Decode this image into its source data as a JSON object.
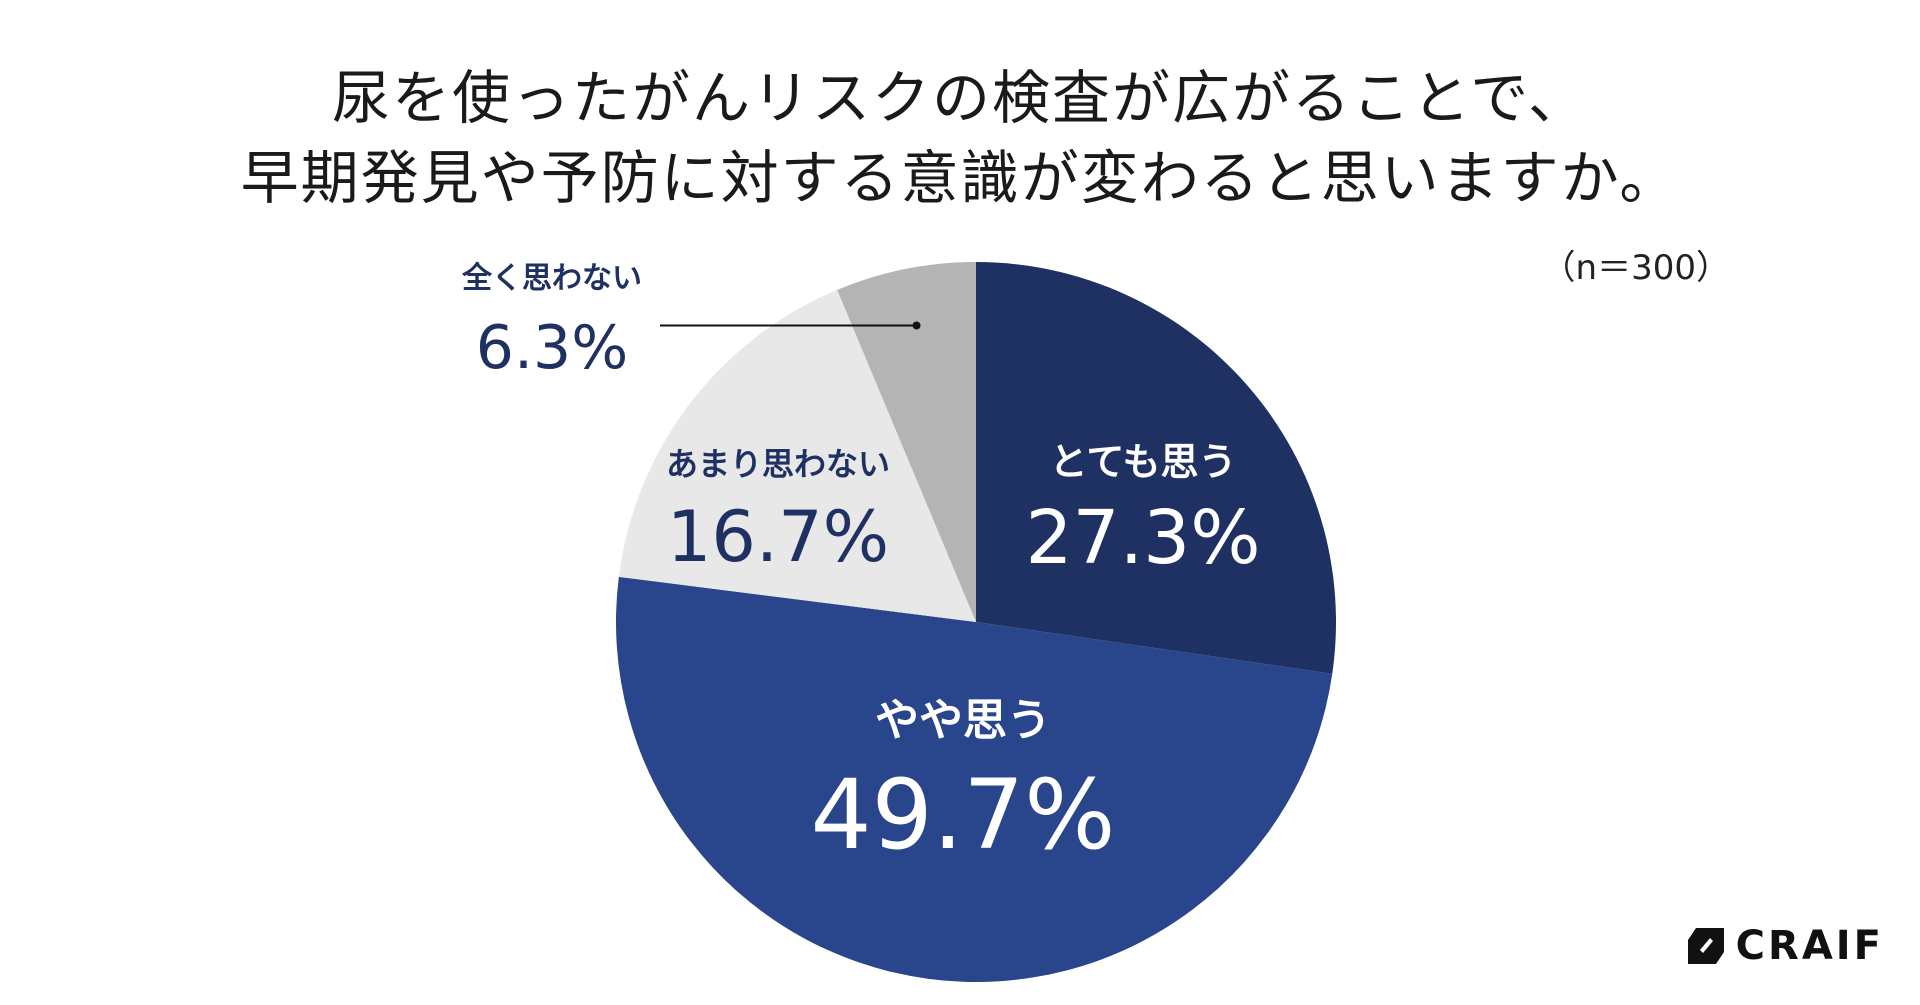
{
  "title": {
    "line1": "尿を使ったがんリスクの検査が広がることで、",
    "line2": "早期発見や予防に対する意識が変わると思いますか。"
  },
  "sample_size": "（n＝300）",
  "logo": {
    "text": "CRAIF",
    "icon": "craif-logo-icon"
  },
  "chart_data": {
    "type": "pie",
    "title": "尿を使ったがんリスクの検査が広がることで、早期発見や予防に対する意識が変わると思いますか。",
    "start": "12 o'clock, clockwise",
    "slices": [
      {
        "label": "とても思う",
        "value": 27.3,
        "value_label": "27.3%",
        "color": "#1f3163",
        "text_color": "#ffffff"
      },
      {
        "label": "やや思う",
        "value": 49.7,
        "value_label": "49.7%",
        "color": "#29458c",
        "text_color": "#ffffff"
      },
      {
        "label": "あまり思わない",
        "value": 16.7,
        "value_label": "16.7%",
        "color": "#e8e8e8",
        "text_color": "#1f3163"
      },
      {
        "label": "全く思わない",
        "value": 6.3,
        "value_label": "6.3%",
        "color": "#b4b4b4",
        "text_color": "#1f3163"
      }
    ]
  }
}
